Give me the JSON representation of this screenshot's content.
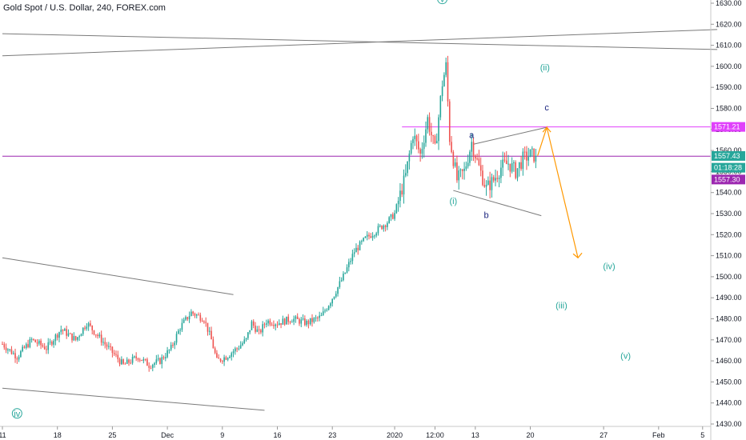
{
  "chart_data": {
    "type": "candlestick",
    "title": "Gold Spot / U.S. Dollar, 240, FOREX.com",
    "x_labels": [
      {
        "label": "11",
        "i": 0
      },
      {
        "label": "18",
        "i": 30
      },
      {
        "label": "25",
        "i": 60
      },
      {
        "label": "Dec",
        "i": 90
      },
      {
        "label": "9",
        "i": 120
      },
      {
        "label": "16",
        "i": 150
      },
      {
        "label": "23",
        "i": 180
      },
      {
        "label": "2020",
        "i": 214
      },
      {
        "label": "12:00",
        "i": 236
      },
      {
        "label": "13",
        "i": 258
      },
      {
        "label": "20",
        "i": 288
      },
      {
        "label": "27",
        "i": 328
      },
      {
        "label": "Feb",
        "i": 358
      },
      {
        "label": "5",
        "i": 382
      }
    ],
    "ylim": [
      1430,
      1630
    ],
    "y_ticks": [
      1430,
      1440,
      1450,
      1460,
      1470,
      1480,
      1490,
      1500,
      1510,
      1520,
      1530,
      1540,
      1550,
      1560,
      1570,
      1580,
      1590,
      1600,
      1610,
      1620,
      1630
    ],
    "last_index": 291,
    "price_tags": [
      {
        "label": "1571.21",
        "value": 1571.2,
        "color": "#e040fb"
      },
      {
        "label": "1557.43",
        "value": 1557.4,
        "color": "#26a69a"
      },
      {
        "label": "01:18:28",
        "value": 1551.8,
        "color": "#26a69a"
      },
      {
        "label": "1557.30",
        "value": 1546.2,
        "color": "#9c27b0"
      }
    ],
    "hlines": [
      {
        "value": 1571.2,
        "x_start_i": 218,
        "color": "#e040fb"
      },
      {
        "value": 1557.3,
        "x_start_i": 0,
        "color": "#9c27b0"
      }
    ],
    "trendlines": [
      {
        "from": [
          0,
          1615.5
        ],
        "to": [
          390,
          1608
        ],
        "color": "#7a7a7a"
      },
      {
        "from": [
          0,
          1605
        ],
        "to": [
          390,
          1617.5
        ],
        "color": "#7a7a7a"
      },
      {
        "from": [
          0,
          1509
        ],
        "to": [
          126,
          1491.5
        ],
        "color": "#7a7a7a"
      },
      {
        "from": [
          0,
          1447
        ],
        "to": [
          143,
          1436.5
        ],
        "color": "#7a7a7a"
      },
      {
        "from": [
          246,
          1541
        ],
        "to": [
          294,
          1529
        ],
        "color": "#7a7a7a"
      },
      {
        "from": [
          257,
          1563
        ],
        "to": [
          297,
          1571
        ],
        "color": "#7a7a7a"
      }
    ],
    "projection": {
      "points": [
        [
          292,
          1557.5
        ],
        [
          297,
          1571
        ],
        [
          314,
          1509
        ]
      ],
      "color": "#ff9800"
    },
    "wave_labels": [
      {
        "text": "v",
        "i": 240,
        "value": 1630.5,
        "color": "#26a69a",
        "circled": true
      },
      {
        "text": "(ii)",
        "i": 296,
        "value": 1598,
        "color": "#26a69a"
      },
      {
        "text": "c",
        "i": 297,
        "value": 1579,
        "color": "#1a237e"
      },
      {
        "text": "a",
        "i": 256,
        "value": 1566,
        "color": "#1a237e"
      },
      {
        "text": "(i)",
        "i": 246,
        "value": 1534.5,
        "color": "#26a69a"
      },
      {
        "text": "b",
        "i": 264,
        "value": 1528,
        "color": "#1a237e"
      },
      {
        "text": "(iv)",
        "i": 331,
        "value": 1503.5,
        "color": "#26a69a"
      },
      {
        "text": "(iii)",
        "i": 305,
        "value": 1485,
        "color": "#26a69a"
      },
      {
        "text": "(v)",
        "i": 340,
        "value": 1461,
        "color": "#26a69a"
      },
      {
        "text": "iv",
        "i": 8,
        "value": 1433.5,
        "color": "#26a69a",
        "circled": true
      }
    ],
    "anchors": [
      [
        0,
        1468
      ],
      [
        8,
        1462
      ],
      [
        16,
        1470
      ],
      [
        24,
        1466
      ],
      [
        32,
        1475
      ],
      [
        40,
        1470
      ],
      [
        46,
        1478
      ],
      [
        52,
        1472
      ],
      [
        58,
        1466
      ],
      [
        66,
        1458
      ],
      [
        74,
        1462
      ],
      [
        80,
        1458
      ],
      [
        86,
        1460
      ],
      [
        92,
        1466
      ],
      [
        97,
        1476
      ],
      [
        103,
        1483
      ],
      [
        110,
        1480
      ],
      [
        114,
        1470
      ],
      [
        117,
        1460
      ],
      [
        122,
        1462
      ],
      [
        128,
        1466
      ],
      [
        133,
        1470
      ],
      [
        136,
        1478
      ],
      [
        140,
        1473
      ],
      [
        144,
        1479
      ],
      [
        150,
        1478
      ],
      [
        158,
        1480
      ],
      [
        166,
        1478
      ],
      [
        174,
        1481
      ],
      [
        180,
        1490
      ],
      [
        186,
        1500
      ],
      [
        192,
        1512
      ],
      [
        198,
        1518
      ],
      [
        204,
        1522
      ],
      [
        210,
        1526
      ],
      [
        214,
        1530
      ],
      [
        220,
        1548
      ],
      [
        224,
        1568
      ],
      [
        228,
        1558
      ],
      [
        232,
        1575
      ],
      [
        236,
        1560
      ],
      [
        240,
        1592
      ],
      [
        242,
        1600
      ],
      [
        244,
        1566
      ],
      [
        248,
        1546
      ],
      [
        252,
        1550
      ],
      [
        256,
        1564
      ],
      [
        260,
        1552
      ],
      [
        264,
        1542
      ],
      [
        268,
        1546
      ],
      [
        272,
        1552
      ],
      [
        276,
        1554
      ],
      [
        280,
        1550
      ],
      [
        284,
        1556
      ],
      [
        288,
        1558
      ],
      [
        291,
        1557.4
      ]
    ]
  }
}
